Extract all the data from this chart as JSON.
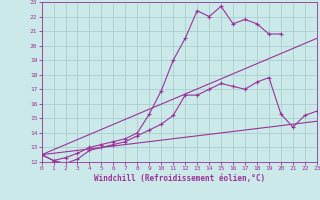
{
  "xlabel": "Windchill (Refroidissement éolien,°C)",
  "xlim": [
    0,
    23
  ],
  "ylim": [
    12,
    23
  ],
  "yticks": [
    12,
    13,
    14,
    15,
    16,
    17,
    18,
    19,
    20,
    21,
    22,
    23
  ],
  "xticks": [
    0,
    1,
    2,
    3,
    4,
    5,
    6,
    7,
    8,
    9,
    10,
    11,
    12,
    13,
    14,
    15,
    16,
    17,
    18,
    19,
    20,
    21,
    22,
    23
  ],
  "bg_color": "#cce9e9",
  "grid_color": "#aacfcf",
  "line_color": "#993399",
  "line1_x": [
    0,
    1,
    2,
    3,
    4,
    5,
    6,
    7,
    8,
    9,
    10,
    11,
    12,
    13,
    14,
    15,
    16,
    17,
    18,
    19,
    20,
    21,
    22,
    23
  ],
  "line1_y": [
    12.5,
    12.1,
    11.9,
    12.2,
    12.8,
    13.0,
    13.2,
    13.4,
    13.8,
    14.2,
    14.6,
    15.2,
    16.6,
    16.6,
    17.0,
    17.4,
    17.2,
    17.0,
    17.5,
    17.8,
    15.3,
    14.4,
    15.2,
    15.5
  ],
  "line2_x": [
    0,
    1,
    2,
    3,
    4,
    5,
    6,
    7,
    8,
    9,
    10,
    11,
    12,
    13,
    14,
    15,
    16,
    17,
    18,
    19,
    20
  ],
  "line2_y": [
    12.5,
    12.1,
    12.3,
    12.6,
    13.0,
    13.2,
    13.4,
    13.6,
    14.0,
    15.3,
    16.9,
    19.0,
    20.5,
    22.4,
    22.0,
    22.7,
    21.5,
    21.8,
    21.5,
    20.8,
    20.8
  ],
  "line3_x": [
    0,
    23
  ],
  "line3_y": [
    12.5,
    20.5
  ],
  "line4_x": [
    0,
    23
  ],
  "line4_y": [
    12.5,
    14.8
  ]
}
